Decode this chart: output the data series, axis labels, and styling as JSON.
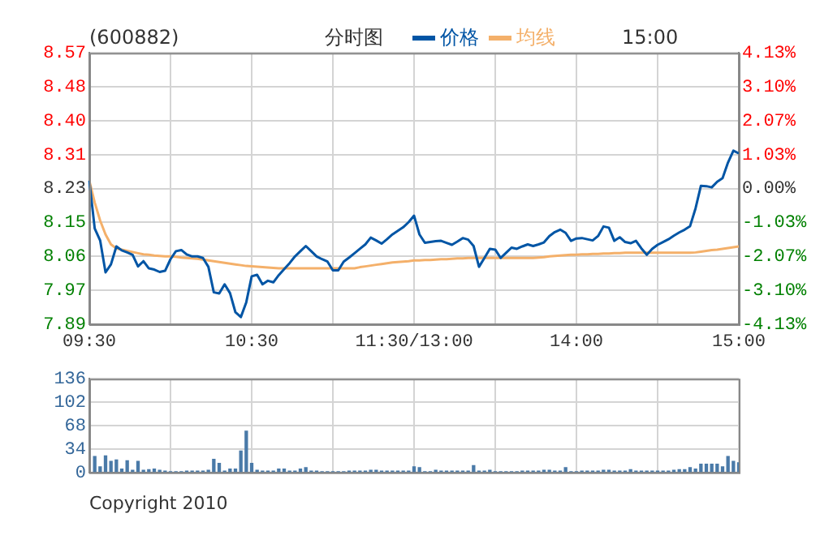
{
  "chart_data": [
    {
      "type": "line",
      "title": "(600882)",
      "subtitle": "分时图",
      "legend": "top",
      "grid": true,
      "annotations": [
        "15:00"
      ],
      "categories": [
        "09:30",
        null,
        null,
        null,
        null,
        null,
        null,
        null,
        null,
        null,
        null,
        null,
        null,
        null,
        null,
        null,
        null,
        null,
        null,
        null,
        null,
        null,
        null,
        null,
        null,
        null,
        null,
        null,
        null,
        null,
        "10:30",
        null,
        null,
        null,
        null,
        null,
        null,
        null,
        null,
        null,
        null,
        null,
        null,
        null,
        null,
        null,
        null,
        null,
        null,
        null,
        null,
        null,
        null,
        null,
        null,
        null,
        null,
        null,
        null,
        null,
        "11:30/13:00",
        null,
        null,
        null,
        null,
        null,
        null,
        null,
        null,
        null,
        null,
        null,
        null,
        null,
        null,
        null,
        null,
        null,
        null,
        null,
        null,
        null,
        null,
        null,
        null,
        null,
        null,
        null,
        null,
        null,
        "14:00",
        null,
        null,
        null,
        null,
        null,
        null,
        null,
        null,
        null,
        null,
        null,
        null,
        null,
        null,
        null,
        null,
        null,
        null,
        null,
        null,
        null,
        null,
        null,
        null,
        null,
        null,
        null,
        null,
        null,
        "15:00"
      ],
      "ylim": [
        7.89,
        8.57
      ],
      "yticks": [
        7.89,
        {
          "value": 7.975,
          "label": "7.97"
        },
        8.06,
        {
          "value": 8.145,
          "label": "8.15"
        },
        8.23,
        {
          "value": 8.315,
          "label": "8.31"
        },
        {
          "value": 8.4,
          "label": "8.40"
        },
        {
          "value": 8.485,
          "label": "8.48"
        },
        8.57
      ],
      "y2lim": [
        -4.13,
        4.13
      ],
      "y2ticks": [
        {
          "value": -4.13,
          "label": "-4.13%"
        },
        {
          "value": -3.1,
          "label": "-3.10%"
        },
        {
          "value": -2.07,
          "label": "-2.07%"
        },
        {
          "value": -1.03,
          "label": "-1.03%"
        },
        {
          "value": 0,
          "label": "0.00%"
        },
        {
          "value": 1.03,
          "label": "1.03%"
        },
        {
          "value": 2.07,
          "label": "2.07%"
        },
        {
          "value": 3.1,
          "label": "3.10%"
        },
        {
          "value": 4.13,
          "label": "4.13%"
        }
      ],
      "series": [
        {
          "name": "价格",
          "color": "#0055a5",
          "values": [
            8.25,
            8.13,
            8.1,
            8.02,
            8.04,
            8.085,
            8.075,
            8.07,
            8.064,
            8.035,
            8.048,
            8.03,
            8.027,
            8.021,
            8.024,
            8.053,
            8.073,
            8.076,
            8.065,
            8.06,
            8.06,
            8.056,
            8.034,
            7.97,
            7.967,
            7.99,
            7.968,
            7.92,
            7.908,
            7.945,
            8.01,
            8.014,
            7.99,
            7.999,
            7.995,
            8.013,
            8.028,
            8.043,
            8.06,
            8.073,
            8.086,
            8.073,
            8.06,
            8.053,
            8.047,
            8.025,
            8.025,
            8.047,
            8.057,
            8.068,
            8.079,
            8.09,
            8.107,
            8.1,
            8.092,
            8.103,
            8.115,
            8.124,
            8.133,
            8.146,
            8.162,
            8.115,
            8.094,
            8.096,
            8.098,
            8.099,
            8.094,
            8.089,
            8.097,
            8.106,
            8.102,
            8.086,
            8.034,
            8.056,
            8.079,
            8.077,
            8.056,
            8.069,
            8.082,
            8.079,
            8.085,
            8.09,
            8.086,
            8.09,
            8.095,
            8.111,
            8.121,
            8.127,
            8.119,
            8.099,
            8.105,
            8.106,
            8.103,
            8.1,
            8.111,
            8.135,
            8.132,
            8.099,
            8.108,
            8.096,
            8.093,
            8.099,
            8.08,
            8.064,
            8.079,
            8.089,
            8.096,
            8.103,
            8.112,
            8.12,
            8.127,
            8.136,
            8.18,
            8.237,
            8.236,
            8.233,
            8.247,
            8.256,
            8.295,
            8.325,
            8.318
          ]
        },
        {
          "name": "均线",
          "color": "#f4b06a",
          "values": [
            8.25,
            8.195,
            8.15,
            8.115,
            8.09,
            8.08,
            8.077,
            8.074,
            8.071,
            8.068,
            8.065,
            8.064,
            8.062,
            8.061,
            8.06,
            8.06,
            8.059,
            8.057,
            8.056,
            8.055,
            8.054,
            8.052,
            8.05,
            8.048,
            8.046,
            8.044,
            8.042,
            8.04,
            8.038,
            8.036,
            8.035,
            8.034,
            8.033,
            8.032,
            8.031,
            8.03,
            8.03,
            8.03,
            8.03,
            8.03,
            8.03,
            8.03,
            8.03,
            8.03,
            8.03,
            8.03,
            8.03,
            8.03,
            8.03,
            8.03,
            8.033,
            8.035,
            8.037,
            8.039,
            8.041,
            8.043,
            8.045,
            8.046,
            8.047,
            8.048,
            8.05,
            8.05,
            8.051,
            8.051,
            8.052,
            8.053,
            8.053,
            8.054,
            8.055,
            8.055,
            8.056,
            8.056,
            8.056,
            8.056,
            8.056,
            8.056,
            8.056,
            8.056,
            8.056,
            8.056,
            8.056,
            8.056,
            8.056,
            8.057,
            8.058,
            8.06,
            8.061,
            8.062,
            8.063,
            8.064,
            8.064,
            8.065,
            8.065,
            8.066,
            8.066,
            8.067,
            8.067,
            8.068,
            8.068,
            8.069,
            8.069,
            8.069,
            8.069,
            8.069,
            8.069,
            8.069,
            8.069,
            8.069,
            8.069,
            8.069,
            8.069,
            8.069,
            8.07,
            8.072,
            8.074,
            8.076,
            8.077,
            8.079,
            8.081,
            8.083,
            8.085
          ]
        }
      ]
    },
    {
      "type": "bar",
      "color": "#4a7aa8",
      "grid": true,
      "tick_labels": "y",
      "annotations": [
        "Copyright 2010"
      ],
      "categories": [
        null,
        null,
        null,
        null,
        null,
        null,
        null,
        null,
        null,
        null,
        null,
        null,
        null,
        null,
        null,
        null,
        null,
        null,
        null,
        null,
        null,
        null,
        null,
        null,
        null,
        null,
        null,
        null,
        null,
        null,
        null,
        null,
        null,
        null,
        null,
        null,
        null,
        null,
        null,
        null,
        null,
        null,
        null,
        null,
        null,
        null,
        null,
        null,
        null,
        null,
        null,
        null,
        null,
        null,
        null,
        null,
        null,
        null,
        null,
        null,
        null,
        null,
        null,
        null,
        null,
        null,
        null,
        null,
        null,
        null,
        null,
        null,
        null,
        null,
        null,
        null,
        null,
        null,
        null,
        null,
        null,
        null,
        null,
        null,
        null,
        null,
        null,
        null,
        null,
        null,
        null,
        null,
        null,
        null,
        null,
        null,
        null,
        null,
        null,
        null,
        null,
        null,
        null,
        null,
        null,
        null,
        null,
        null,
        null,
        null,
        null,
        null,
        null,
        null,
        null,
        null,
        null,
        null,
        null,
        null,
        null
      ],
      "ylim": [
        0,
        136
      ],
      "yticks": [
        0,
        34,
        68,
        102,
        136
      ],
      "values": [
        null,
        23,
        8,
        24,
        16,
        18,
        5,
        17,
        3,
        16,
        3,
        4,
        5,
        3,
        2,
        1,
        1,
        1,
        2,
        2,
        2,
        2,
        3,
        19,
        13,
        2,
        5,
        5,
        31,
        60,
        13,
        3,
        2,
        2,
        2,
        5,
        5,
        2,
        2,
        5,
        7,
        2,
        2,
        1,
        1,
        1,
        1,
        1,
        2,
        2,
        2,
        2,
        3,
        3,
        2,
        2,
        2,
        2,
        2,
        2,
        8,
        7,
        1,
        1,
        3,
        2,
        2,
        2,
        2,
        2,
        2,
        10,
        2,
        2,
        3,
        1,
        1,
        1,
        1,
        1,
        2,
        2,
        2,
        2,
        3,
        3,
        2,
        2,
        7,
        1,
        1,
        2,
        2,
        2,
        2,
        3,
        3,
        2,
        2,
        2,
        4,
        2,
        2,
        2,
        2,
        2,
        2,
        2,
        3,
        4,
        4,
        7,
        5,
        12,
        12,
        12,
        12,
        8,
        23,
        16,
        14
      ]
    }
  ]
}
